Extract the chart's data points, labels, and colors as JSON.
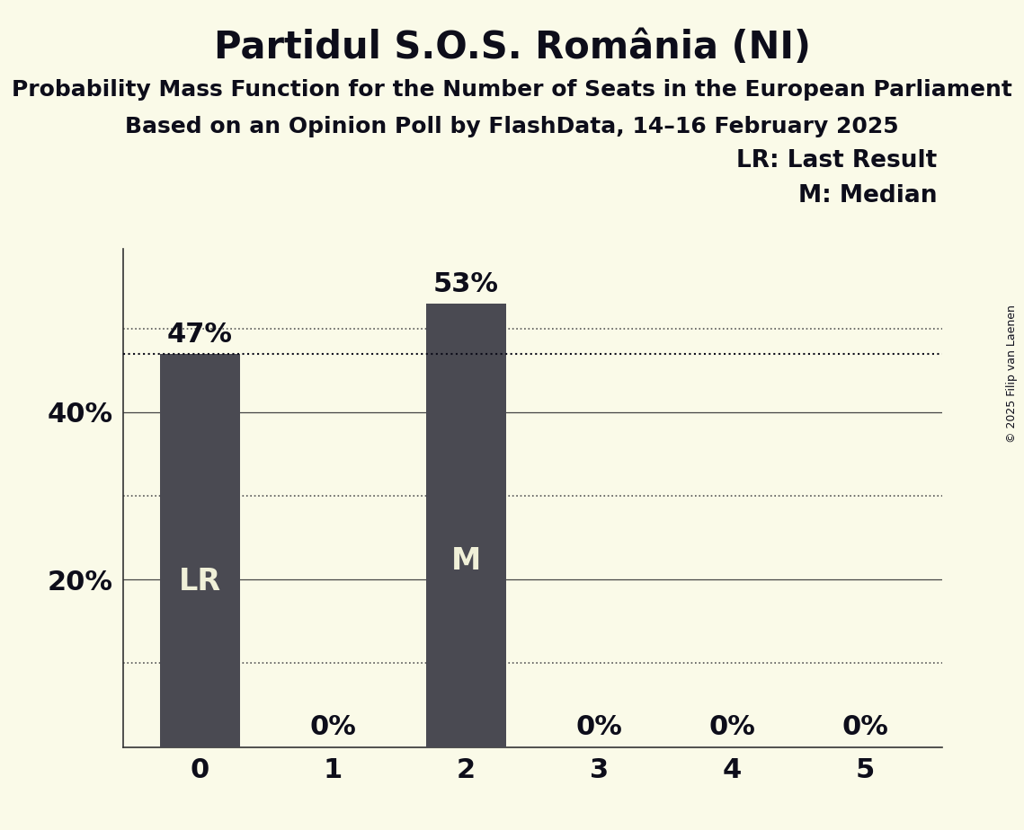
{
  "title": "Partidul S.O.S. România (NI)",
  "subtitle1": "Probability Mass Function for the Number of Seats in the European Parliament",
  "subtitle2": "Based on an Opinion Poll by FlashData, 14–16 February 2025",
  "copyright": "© 2025 Filip van Laenen",
  "categories": [
    0,
    1,
    2,
    3,
    4,
    5
  ],
  "values": [
    0.47,
    0.0,
    0.53,
    0.0,
    0.0,
    0.0
  ],
  "bar_color": "#4a4a52",
  "background_color": "#fafae8",
  "label_color": "#f0f0d8",
  "axis_label_color": "#0d0d1a",
  "bar_labels": [
    "47%",
    "0%",
    "53%",
    "0%",
    "0%",
    "0%"
  ],
  "lr_bar": 0,
  "median_bar": 2,
  "yticks": [
    0.0,
    0.1,
    0.2,
    0.3,
    0.4,
    0.5
  ],
  "ytick_labels": [
    "",
    "",
    "20%",
    "",
    "40%",
    ""
  ],
  "solid_grid_lines": [
    0.2,
    0.4
  ],
  "dotted_grid_lines": [
    0.1,
    0.3,
    0.5
  ],
  "dotted_line_y": 0.47,
  "ylim": [
    0,
    0.595
  ],
  "legend_text_lr": "LR: Last Result",
  "legend_text_m": "M: Median",
  "title_fontsize": 30,
  "subtitle_fontsize": 18,
  "tick_label_fontsize": 22,
  "bar_label_fontsize": 22,
  "bar_inner_fontsize": 24,
  "legend_fontsize": 19,
  "copyright_fontsize": 9
}
